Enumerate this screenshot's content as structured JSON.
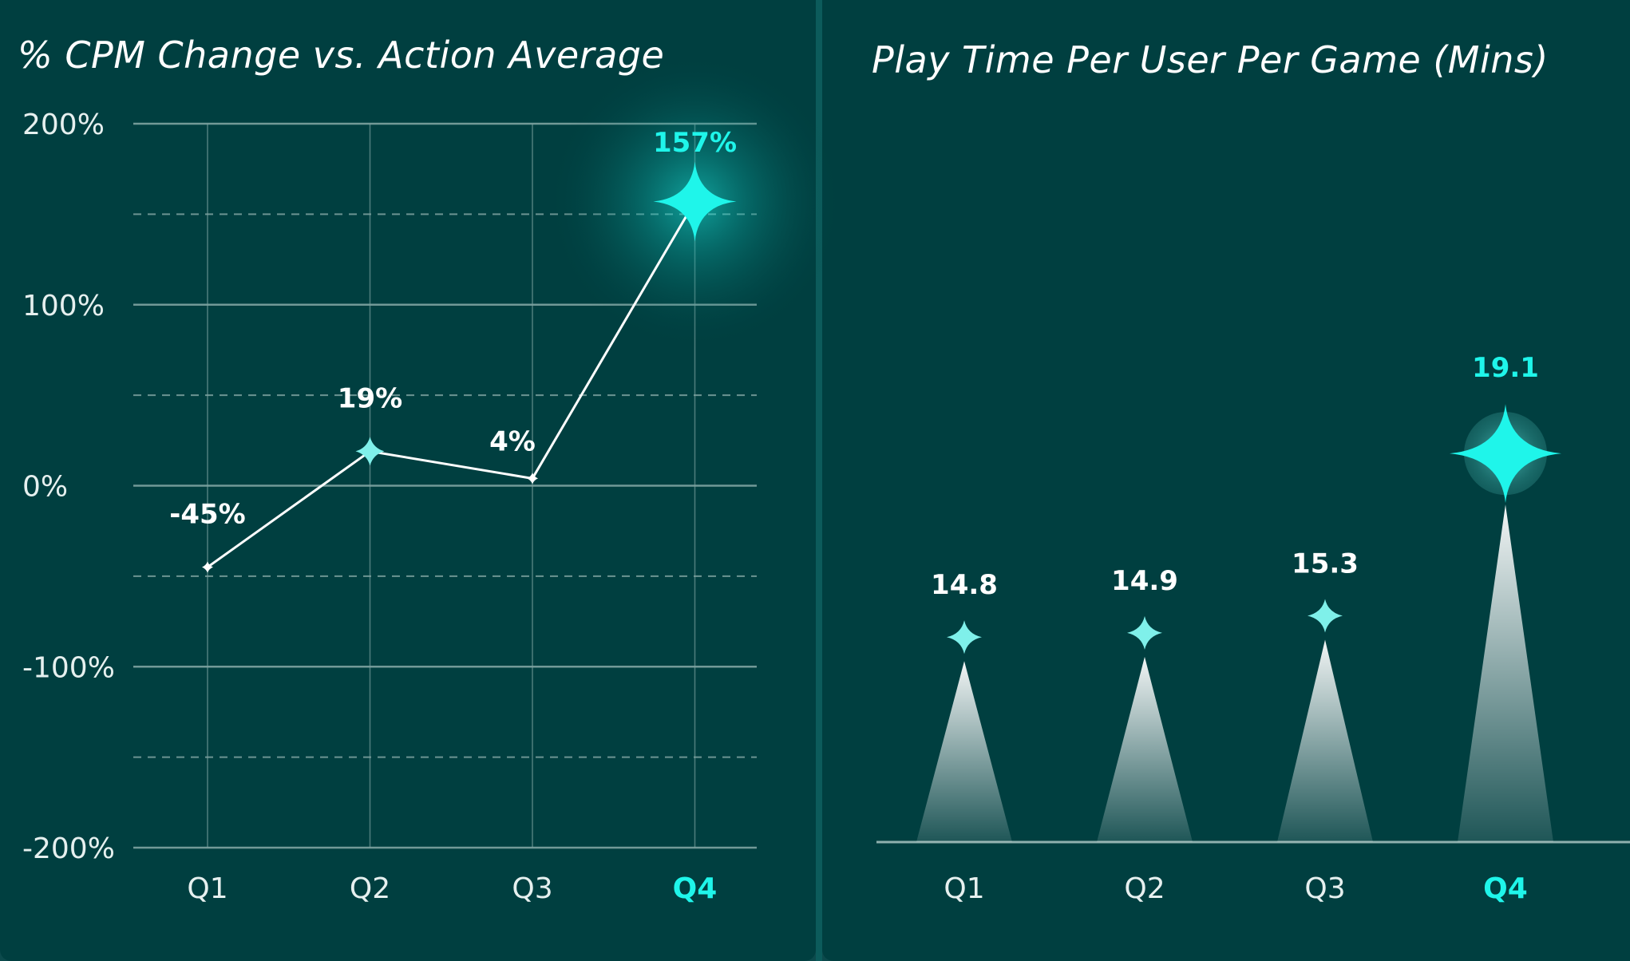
{
  "theme": {
    "background": "#003f40",
    "frame": "#0c5b5b",
    "grid": "#7fa3a1",
    "line": "#ffffff",
    "highlight": "#1ff5ea",
    "text": "#ffffff",
    "axis_text": "#e6f0ef"
  },
  "chart_data": [
    {
      "type": "line",
      "title": "% CPM Change vs. Action Average",
      "categories": [
        "Q1",
        "Q2",
        "Q3",
        "Q4"
      ],
      "series": [
        {
          "values": [
            -45,
            19,
            4,
            157
          ]
        }
      ],
      "data_labels": [
        "-45%",
        "19%",
        "4%",
        "157%"
      ],
      "ylim": [
        -200,
        200
      ],
      "yticks": [
        200,
        100,
        0,
        -100,
        -200
      ],
      "ytick_labels": [
        "200%",
        "100%",
        "0%",
        "-100%",
        "-200%"
      ],
      "grid": true,
      "highlight_category": "Q4"
    },
    {
      "type": "bar",
      "title": "Play Time Per User Per Game (Mins)",
      "categories": [
        "Q1",
        "Q2",
        "Q3",
        "Q4"
      ],
      "values": [
        14.8,
        14.9,
        15.3,
        19.1
      ],
      "data_labels": [
        "14.8",
        "14.9",
        "15.3",
        "19.1"
      ],
      "highlight_category": "Q4"
    }
  ]
}
